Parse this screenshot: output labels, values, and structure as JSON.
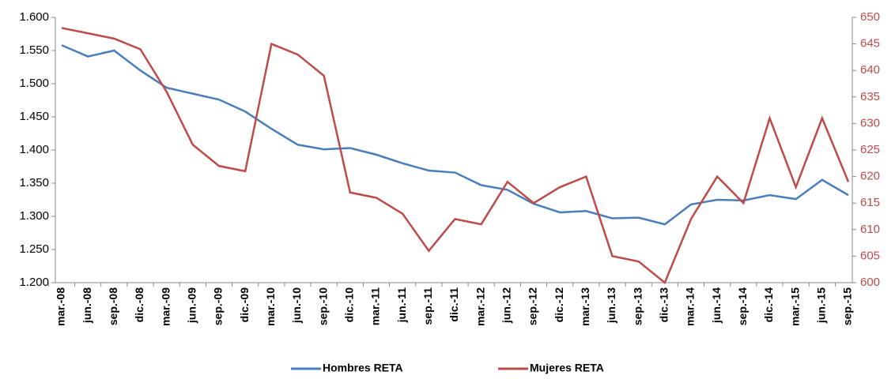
{
  "chart_data": {
    "type": "line",
    "categories": [
      "mar.-08",
      "jun.-08",
      "sep.-08",
      "dic.-08",
      "mar.-09",
      "jun.-09",
      "sep.-09",
      "dic.-09",
      "mar.-10",
      "jun.-10",
      "sep.-10",
      "dic.-10",
      "mar.-11",
      "jun.-11",
      "sep.-11",
      "dic.-11",
      "mar.-12",
      "jun.-12",
      "sep.-12",
      "dic.-12",
      "mar.-13",
      "jun.-13",
      "sep.-13",
      "dic.-13",
      "mar.-14",
      "jun.-14",
      "sep.-14",
      "dic.-14",
      "mar.-15",
      "jun.-15",
      "sep.-15"
    ],
    "series": [
      {
        "name": "Hombres RETA",
        "color": "#4a7ebb",
        "values": [
          1558,
          1541,
          1550,
          1520,
          1494,
          1485,
          1476,
          1458,
          1432,
          1408,
          1401,
          1403,
          1393,
          1380,
          1369,
          1366,
          1347,
          1340,
          1319,
          1306,
          1308,
          1297,
          1298,
          1288,
          1318,
          1325,
          1324,
          1332,
          1326,
          1355,
          1332
        ]
      },
      {
        "name": "Mujeres RETA",
        "color": "#be4b48",
        "axis": "y2",
        "values": [
          648,
          647,
          646,
          644,
          636,
          626,
          622,
          621,
          645,
          643,
          639,
          617,
          616,
          613,
          606,
          612,
          611,
          619,
          615,
          618,
          620,
          605,
          604,
          600,
          612,
          620,
          615,
          631,
          618,
          631,
          619
        ]
      }
    ],
    "ylim": [
      1200,
      1600
    ],
    "yticks": [
      {
        "value": 1200,
        "label": "1.200"
      },
      {
        "value": 1250,
        "label": "1.250"
      },
      {
        "value": 1300,
        "label": "1.300"
      },
      {
        "value": 1350,
        "label": "1.350"
      },
      {
        "value": 1400,
        "label": "1.400"
      },
      {
        "value": 1450,
        "label": "1.450"
      },
      {
        "value": 1500,
        "label": "1.500"
      },
      {
        "value": 1550,
        "label": "1.550"
      },
      {
        "value": 1600,
        "label": "1.600"
      }
    ],
    "y2lim": [
      600,
      650
    ],
    "y2ticks": [
      600,
      605,
      610,
      615,
      620,
      625,
      630,
      635,
      640,
      645,
      650
    ],
    "y2color": "#be4b48",
    "grid": false
  }
}
